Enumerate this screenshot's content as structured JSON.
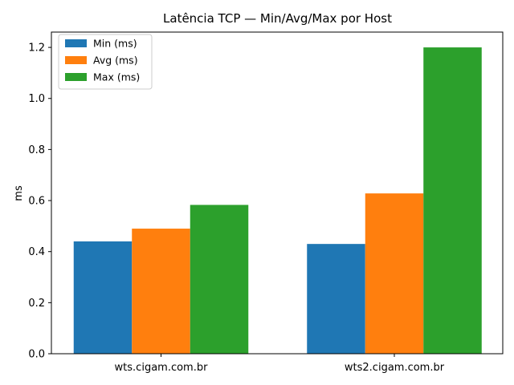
{
  "chart_data": {
    "type": "bar",
    "title": "Latência TCP — Min/Avg/Max por Host",
    "xlabel": "",
    "ylabel": "ms",
    "categories": [
      "wts.cigam.com.br",
      "wts2.cigam.com.br"
    ],
    "series": [
      {
        "name": "Min (ms)",
        "color": "#1f77b4",
        "values": [
          0.44,
          0.43
        ]
      },
      {
        "name": "Avg (ms)",
        "color": "#ff7f0e",
        "values": [
          0.49,
          0.628
        ]
      },
      {
        "name": "Max (ms)",
        "color": "#2ca02c",
        "values": [
          0.583,
          1.2
        ]
      }
    ],
    "ylim": [
      0,
      1.26
    ],
    "yticks": [
      "0.0",
      "0.2",
      "0.4",
      "0.6",
      "0.8",
      "1.0",
      "1.2"
    ],
    "legend_position": "top-left",
    "grid": false
  }
}
